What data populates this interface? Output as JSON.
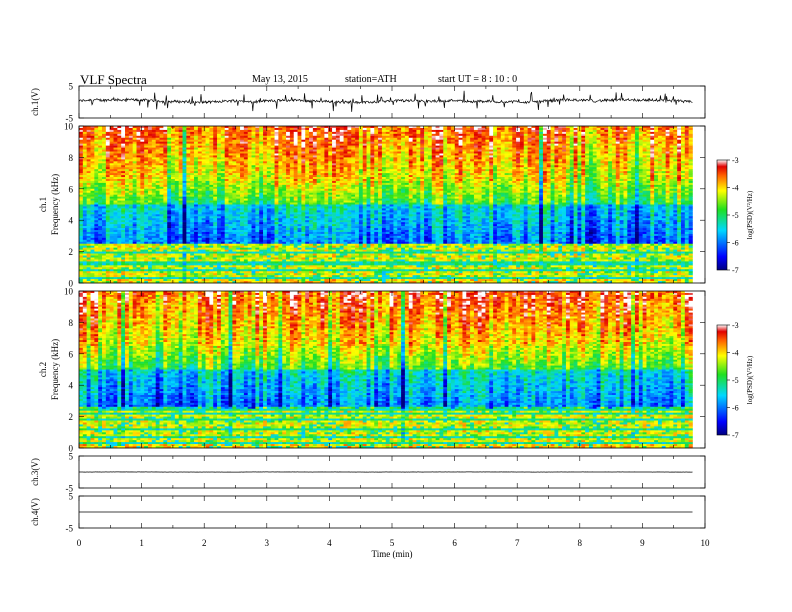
{
  "header": {
    "title": "VLF  Spectra",
    "date": "May 13, 2015",
    "station": "station=ATH",
    "start": "start  UT  =   8 : 10 : 0"
  },
  "chart_data": [
    {
      "type": "line",
      "name": "ch1-waveform",
      "ylabel": "ch.1(V)",
      "ylim": [
        -5,
        5
      ],
      "yticks": [
        "5",
        "-5"
      ],
      "xlim": [
        0,
        10
      ],
      "x_end": 9.8,
      "baseline": 0.3,
      "noise_amplitude": 1.0,
      "spikes": true
    },
    {
      "type": "heatmap",
      "name": "ch1-spectrogram",
      "ylabel_channel": "ch.1",
      "ylabel": "Frequency  (kHz)",
      "ylim": [
        0,
        10
      ],
      "yticks": [
        "0",
        "2",
        "4",
        "6",
        "8",
        "10"
      ],
      "xlim": [
        0,
        10
      ],
      "x_end": 9.8,
      "colorbar": {
        "label": "log(PSD)(V²/Hz)",
        "range": [
          -7,
          -3
        ],
        "ticks": [
          "-3",
          "-4",
          "-5",
          "-6",
          "-7"
        ]
      }
    },
    {
      "type": "heatmap",
      "name": "ch2-spectrogram",
      "ylabel_channel": "ch.2",
      "ylabel": "Frequency  (kHz)",
      "ylim": [
        0,
        10
      ],
      "yticks": [
        "0",
        "2",
        "4",
        "6",
        "8",
        "10"
      ],
      "xlim": [
        0,
        10
      ],
      "x_end": 9.8,
      "colorbar": {
        "label": "log(PSD)(V²/Hz)",
        "range": [
          -7,
          -3
        ],
        "ticks": [
          "-3",
          "-4",
          "-5",
          "-6",
          "-7"
        ]
      }
    },
    {
      "type": "line",
      "name": "ch3-waveform",
      "ylabel": "ch.3(V)",
      "ylim": [
        -5,
        5
      ],
      "yticks": [
        "5",
        "-5"
      ],
      "xlim": [
        0,
        10
      ],
      "x_end": 9.8,
      "baseline": 0.0,
      "noise_amplitude": 0.05
    },
    {
      "type": "line",
      "name": "ch4-waveform",
      "ylabel": "ch.4(V)",
      "ylim": [
        -5,
        5
      ],
      "yticks": [
        "5",
        "-5"
      ],
      "xlim": [
        0,
        10
      ],
      "x_end": 9.8,
      "baseline": 0.0,
      "noise_amplitude": 0.0
    }
  ],
  "xaxis": {
    "label": "Time  (min)",
    "ticks": [
      "0",
      "1",
      "2",
      "3",
      "4",
      "5",
      "6",
      "7",
      "8",
      "9",
      "10"
    ],
    "range": [
      0,
      10
    ]
  }
}
